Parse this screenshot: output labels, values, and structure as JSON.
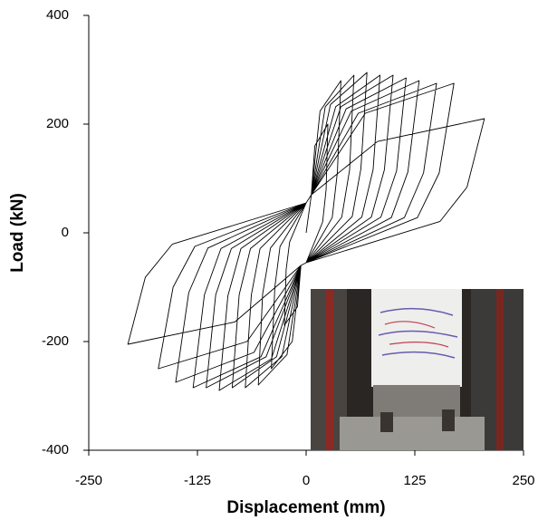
{
  "chart_data": {
    "type": "line",
    "xlabel": "Displacement (mm)",
    "ylabel": "Load (kN)",
    "xlim": [
      -250,
      250
    ],
    "xticks": [
      -250,
      -125,
      0,
      125,
      250
    ],
    "ylim": [
      -400,
      400
    ],
    "yticks": [
      -400,
      -200,
      0,
      200,
      400
    ],
    "series": [
      {
        "color": "#000000",
        "x": [
          0,
          6,
          10,
          25,
          23,
          19,
          0,
          -6,
          -10,
          -25,
          -23,
          -19,
          0,
          6,
          16,
          40,
          36,
          30,
          0,
          -6,
          -16,
          -40,
          -36,
          -30,
          0,
          6,
          22,
          55,
          50,
          41,
          0,
          -6,
          -22,
          -55,
          -50,
          -41,
          0,
          6,
          28,
          70,
          63,
          53,
          0,
          -6,
          -28,
          -70,
          -63,
          -53,
          0,
          6,
          34,
          85,
          77,
          64,
          0,
          -6,
          -34,
          -85,
          -77,
          -64,
          0,
          6,
          40,
          100,
          90,
          75,
          0,
          -6,
          -40,
          -100,
          -90,
          -75,
          0,
          6,
          46,
          115,
          104,
          86,
          0,
          -6,
          -46,
          -115,
          -104,
          -86,
          0,
          6,
          52,
          130,
          117,
          98,
          0,
          -6,
          -52,
          -130,
          -117,
          -98,
          0,
          6,
          60,
          150,
          135,
          113,
          0,
          -6,
          -60,
          -150,
          -135,
          -113,
          0,
          6,
          68,
          170,
          153,
          128,
          0,
          -6,
          -68,
          -170,
          -153,
          -128,
          0,
          6,
          82,
          205,
          185,
          154,
          0,
          -6,
          -82,
          -205,
          -185,
          -154,
          0
        ],
        "values": [
          0,
          70,
          160,
          200,
          80,
          20,
          -55,
          -60,
          -136,
          -170,
          -68,
          -17,
          55,
          70,
          224,
          280,
          112,
          28,
          -55,
          -60,
          -200,
          -250,
          -100,
          -25,
          55,
          70,
          232,
          290,
          116,
          29,
          -55,
          -60,
          -224,
          -280,
          -112,
          -28,
          55,
          70,
          236,
          295,
          118,
          30,
          -55,
          -60,
          -228,
          -285,
          -114,
          -29,
          55,
          70,
          232,
          290,
          116,
          29,
          -55,
          -60,
          -228,
          -285,
          -114,
          -29,
          55,
          70,
          232,
          290,
          116,
          29,
          -55,
          -60,
          -232,
          -290,
          -116,
          -29,
          55,
          70,
          228,
          285,
          114,
          29,
          -55,
          -60,
          -228,
          -285,
          -114,
          -29,
          55,
          70,
          224,
          280,
          112,
          28,
          -55,
          -60,
          -228,
          -285,
          -114,
          -29,
          55,
          70,
          220,
          275,
          110,
          28,
          -55,
          -60,
          -220,
          -275,
          -110,
          -28,
          55,
          70,
          220,
          275,
          110,
          28,
          -55,
          -60,
          -200,
          -250,
          -100,
          -25,
          55,
          70,
          168,
          210,
          84,
          21,
          -55,
          -60,
          -164,
          -205,
          -82,
          -21,
          55
        ]
      }
    ]
  }
}
